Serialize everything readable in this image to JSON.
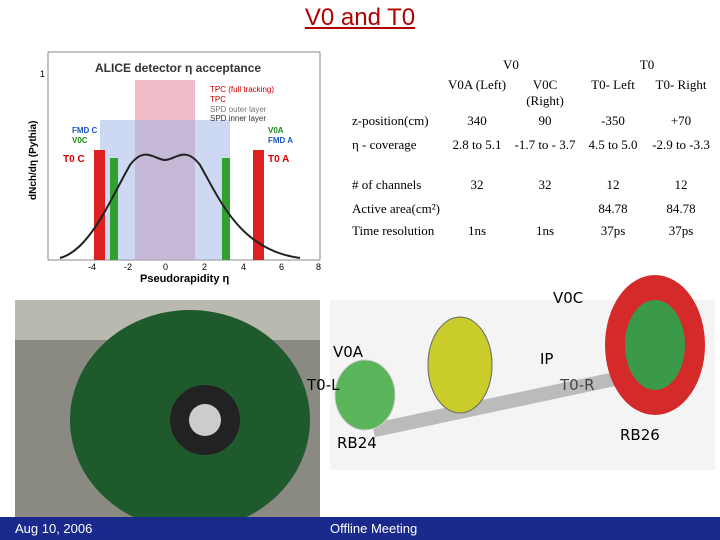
{
  "header": {
    "title": "V0 and T0"
  },
  "plot": {
    "title": "ALICE detector η acceptance",
    "y_label": "dNch/dη (Pythia)",
    "x_label": "Pseudorapidity η",
    "legend": [
      "TPC (full tracking)",
      "TPC",
      "SPD outer layer",
      "SPD inner layer"
    ],
    "detector_labels": [
      "FMD C",
      "V0C",
      "T0 C",
      "V0A",
      "FMD A",
      "T0 A"
    ],
    "x_ticks": [
      "-4",
      "-2",
      "0",
      "2",
      "4",
      "6",
      "8"
    ],
    "y_ticks": [
      "1"
    ]
  },
  "table": {
    "groups": [
      "V0",
      "T0"
    ],
    "columns": [
      "V0A (Left)",
      "V0C (Right)",
      "T0- Left",
      "T0- Right"
    ],
    "rows": [
      [
        "z-position(cm)",
        "340",
        "90",
        "-350",
        "+70"
      ],
      [
        "η - coverage",
        "2.8 to 5.1",
        "-1.7 to - 3.7",
        "4.5 to 5.0",
        "-2.9 to -3.3"
      ],
      [
        "# of channels",
        "32",
        "32",
        "12",
        "12"
      ],
      [
        "Active area(cm²)",
        null,
        null,
        "84.78",
        "84.78"
      ],
      [
        "Time resolution",
        "1ns",
        "1ns",
        "37ps",
        "37ps"
      ]
    ]
  },
  "photo_labels": [
    "V0A",
    "T0-L",
    "RB24",
    "V0C",
    "IP",
    "T0-R",
    "RB26"
  ],
  "footer": {
    "date": "Aug 10, 2006",
    "meeting": "Offline Meeting"
  }
}
